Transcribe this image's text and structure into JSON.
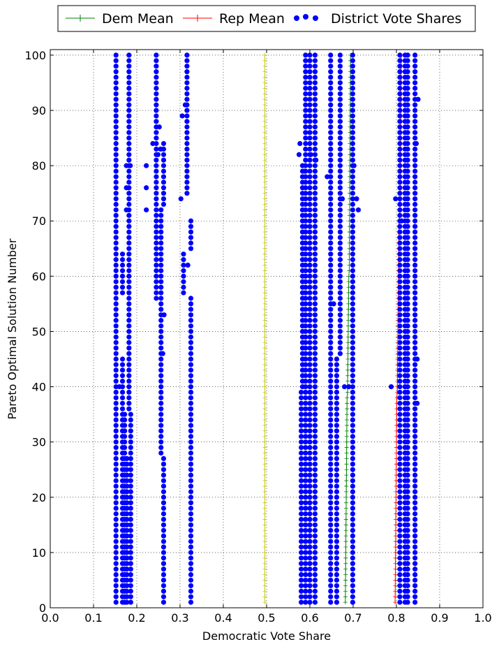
{
  "chart_data": {
    "type": "scatter",
    "xlabel": "Democratic Vote Share",
    "ylabel": "Pareto Optimal Solution Number",
    "xlim": [
      0.0,
      1.0
    ],
    "ylim": [
      0,
      101
    ],
    "x_ticks": [
      "0.0",
      "0.1",
      "0.2",
      "0.3",
      "0.4",
      "0.5",
      "0.6",
      "0.7",
      "0.8",
      "0.9",
      "1.0"
    ],
    "y_ticks": [
      "0",
      "10",
      "20",
      "30",
      "40",
      "50",
      "60",
      "70",
      "80",
      "90",
      "100"
    ],
    "grid": true,
    "legend_position": "top-center, outside plot",
    "legend": [
      "Dem Mean",
      "Rep Mean",
      "District Vote Shares"
    ],
    "n_solutions": 100,
    "series": [
      {
        "name": "Dem Mean",
        "style": "line-plus",
        "color": "#008000",
        "segments": [
          {
            "from": 1,
            "to": 38,
            "x_start": 0.682,
            "x_end": 0.686
          },
          {
            "from": 39,
            "to": 60,
            "x_start": 0.687,
            "x_end": 0.69
          },
          {
            "from": 61,
            "to": 100,
            "x_start": 0.691,
            "x_end": 0.694
          }
        ]
      },
      {
        "name": "Rep Mean",
        "style": "line-plus",
        "color": "#ff0000",
        "segments": [
          {
            "from": 1,
            "to": 38,
            "x_start": 0.797,
            "x_end": 0.801
          },
          {
            "from": 39,
            "to": 70,
            "x_start": 0.802,
            "x_end": 0.806
          },
          {
            "from": 71,
            "to": 100,
            "x_start": 0.808,
            "x_end": 0.811
          }
        ]
      },
      {
        "style": "line-plus",
        "color": "#c8c800",
        "segments": [
          {
            "from": 1,
            "to": 100,
            "x_start": 0.496,
            "x_end": 0.496
          }
        ]
      },
      {
        "name": "District Vote Shares",
        "style": "markers",
        "color": "#0000ff",
        "columns": [
          {
            "x": 0.152,
            "from": 1,
            "to": 100
          },
          {
            "x": 0.167,
            "from": 1,
            "to": 45
          },
          {
            "x": 0.167,
            "from": 57,
            "to": 64
          },
          {
            "x": 0.172,
            "from": 1,
            "to": 35
          },
          {
            "x": 0.177,
            "from": 1,
            "to": 27
          },
          {
            "x": 0.182,
            "from": 36,
            "to": 100
          },
          {
            "x": 0.186,
            "from": 1,
            "to": 35
          },
          {
            "x": 0.245,
            "from": 56,
            "to": 100
          },
          {
            "x": 0.256,
            "from": 28,
            "to": 72
          },
          {
            "x": 0.262,
            "from": 1,
            "to": 27
          },
          {
            "x": 0.262,
            "from": 73,
            "to": 84
          },
          {
            "x": 0.308,
            "from": 57,
            "to": 64
          },
          {
            "x": 0.316,
            "from": 75,
            "to": 100
          },
          {
            "x": 0.325,
            "from": 1,
            "to": 56
          },
          {
            "x": 0.325,
            "from": 65,
            "to": 70
          },
          {
            "x": 0.58,
            "from": 1,
            "to": 39
          },
          {
            "x": 0.583,
            "from": 40,
            "to": 80
          },
          {
            "x": 0.59,
            "from": 1,
            "to": 100
          },
          {
            "x": 0.6,
            "from": 1,
            "to": 100
          },
          {
            "x": 0.612,
            "from": 1,
            "to": 100
          },
          {
            "x": 0.648,
            "from": 1,
            "to": 100
          },
          {
            "x": 0.662,
            "from": 1,
            "to": 45
          },
          {
            "x": 0.67,
            "from": 46,
            "to": 100
          },
          {
            "x": 0.699,
            "from": 1,
            "to": 100
          },
          {
            "x": 0.808,
            "from": 1,
            "to": 100
          },
          {
            "x": 0.82,
            "from": 1,
            "to": 100
          },
          {
            "x": 0.826,
            "from": 1,
            "to": 100
          },
          {
            "x": 0.843,
            "from": 1,
            "to": 100
          }
        ],
        "scattered_points": [
          [
            0.222,
            80
          ],
          [
            0.222,
            76
          ],
          [
            0.222,
            72
          ],
          [
            0.185,
            80
          ],
          [
            0.176,
            80
          ],
          [
            0.176,
            76
          ],
          [
            0.176,
            72
          ],
          [
            0.16,
            40
          ],
          [
            0.237,
            84
          ],
          [
            0.249,
            82
          ],
          [
            0.252,
            87
          ],
          [
            0.255,
            83
          ],
          [
            0.26,
            46
          ],
          [
            0.263,
            53
          ],
          [
            0.302,
            74
          ],
          [
            0.312,
            91
          ],
          [
            0.305,
            89
          ],
          [
            0.318,
            62
          ],
          [
            0.577,
            84
          ],
          [
            0.575,
            82
          ],
          [
            0.588,
            79
          ],
          [
            0.64,
            78
          ],
          [
            0.655,
            55
          ],
          [
            0.68,
            40
          ],
          [
            0.69,
            40
          ],
          [
            0.675,
            74
          ],
          [
            0.708,
            74
          ],
          [
            0.712,
            72
          ],
          [
            0.798,
            74
          ],
          [
            0.812,
            70
          ],
          [
            0.788,
            40
          ],
          [
            0.82,
            40
          ],
          [
            0.848,
            45
          ],
          [
            0.848,
            37
          ],
          [
            0.85,
            92
          ],
          [
            0.846,
            84
          ],
          [
            0.702,
            80
          ],
          [
            0.602,
            82
          ],
          [
            0.614,
            81
          ]
        ]
      }
    ]
  }
}
